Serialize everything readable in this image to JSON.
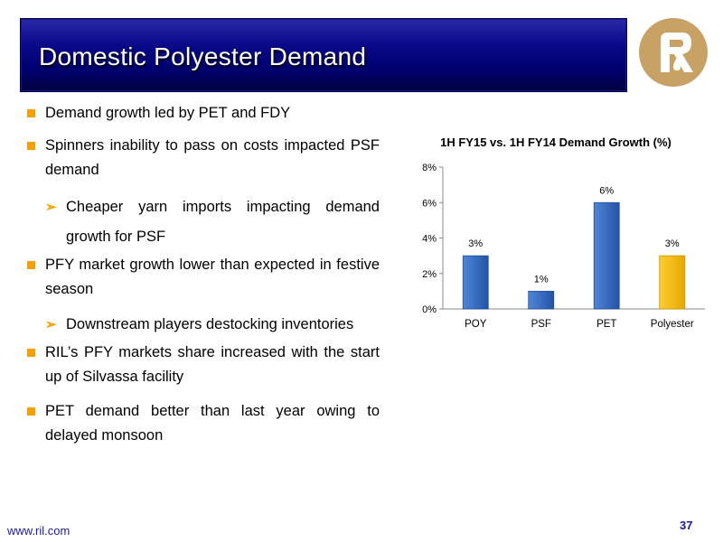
{
  "slide": {
    "title": "Domestic Polyester Demand",
    "footer_url": "www.ril.com",
    "page_number": "37"
  },
  "bullets": [
    {
      "level": 1,
      "text": "Demand growth led by PET and FDY"
    },
    {
      "level": 1,
      "text": "Spinners inability to pass on costs impacted PSF demand"
    },
    {
      "level": 2,
      "text": "Cheaper yarn imports impacting demand growth for PSF"
    },
    {
      "level": 1,
      "text": "PFY market growth lower than expected in festive season"
    },
    {
      "level": 2,
      "text": "Downstream players destocking inventories"
    },
    {
      "level": 1,
      "text": "RIL’s PFY markets share increased with the start up of Silvassa facility"
    },
    {
      "level": 1,
      "text": "PET demand better than last year owing to delayed monsoon"
    }
  ],
  "colors": {
    "title_bar": "#000070",
    "bullet_marker": "#f5a000",
    "bar_blue": "#2e63b8",
    "bar_yellow": "#ffc000",
    "logo_gold": "#c8a165",
    "footer_text": "#1a1aa0"
  },
  "icons": {
    "logo": "reliance-logo",
    "bullet": "square-bullet",
    "sub_bullet": "arrowhead-bullet"
  },
  "chart_data": {
    "type": "bar",
    "title": "1H FY15 vs. 1H FY14 Demand Growth (%)",
    "categories": [
      "POY",
      "PSF",
      "PET",
      "Polyester"
    ],
    "values": [
      3,
      1,
      6,
      3
    ],
    "data_labels": [
      "3%",
      "1%",
      "6%",
      "3%"
    ],
    "yticks": [
      "0%",
      "2%",
      "4%",
      "6%",
      "8%"
    ],
    "ylim": [
      0,
      8
    ],
    "xlabel": "",
    "ylabel": "",
    "grid": false,
    "legend": "none",
    "highlight_category": "Polyester"
  }
}
